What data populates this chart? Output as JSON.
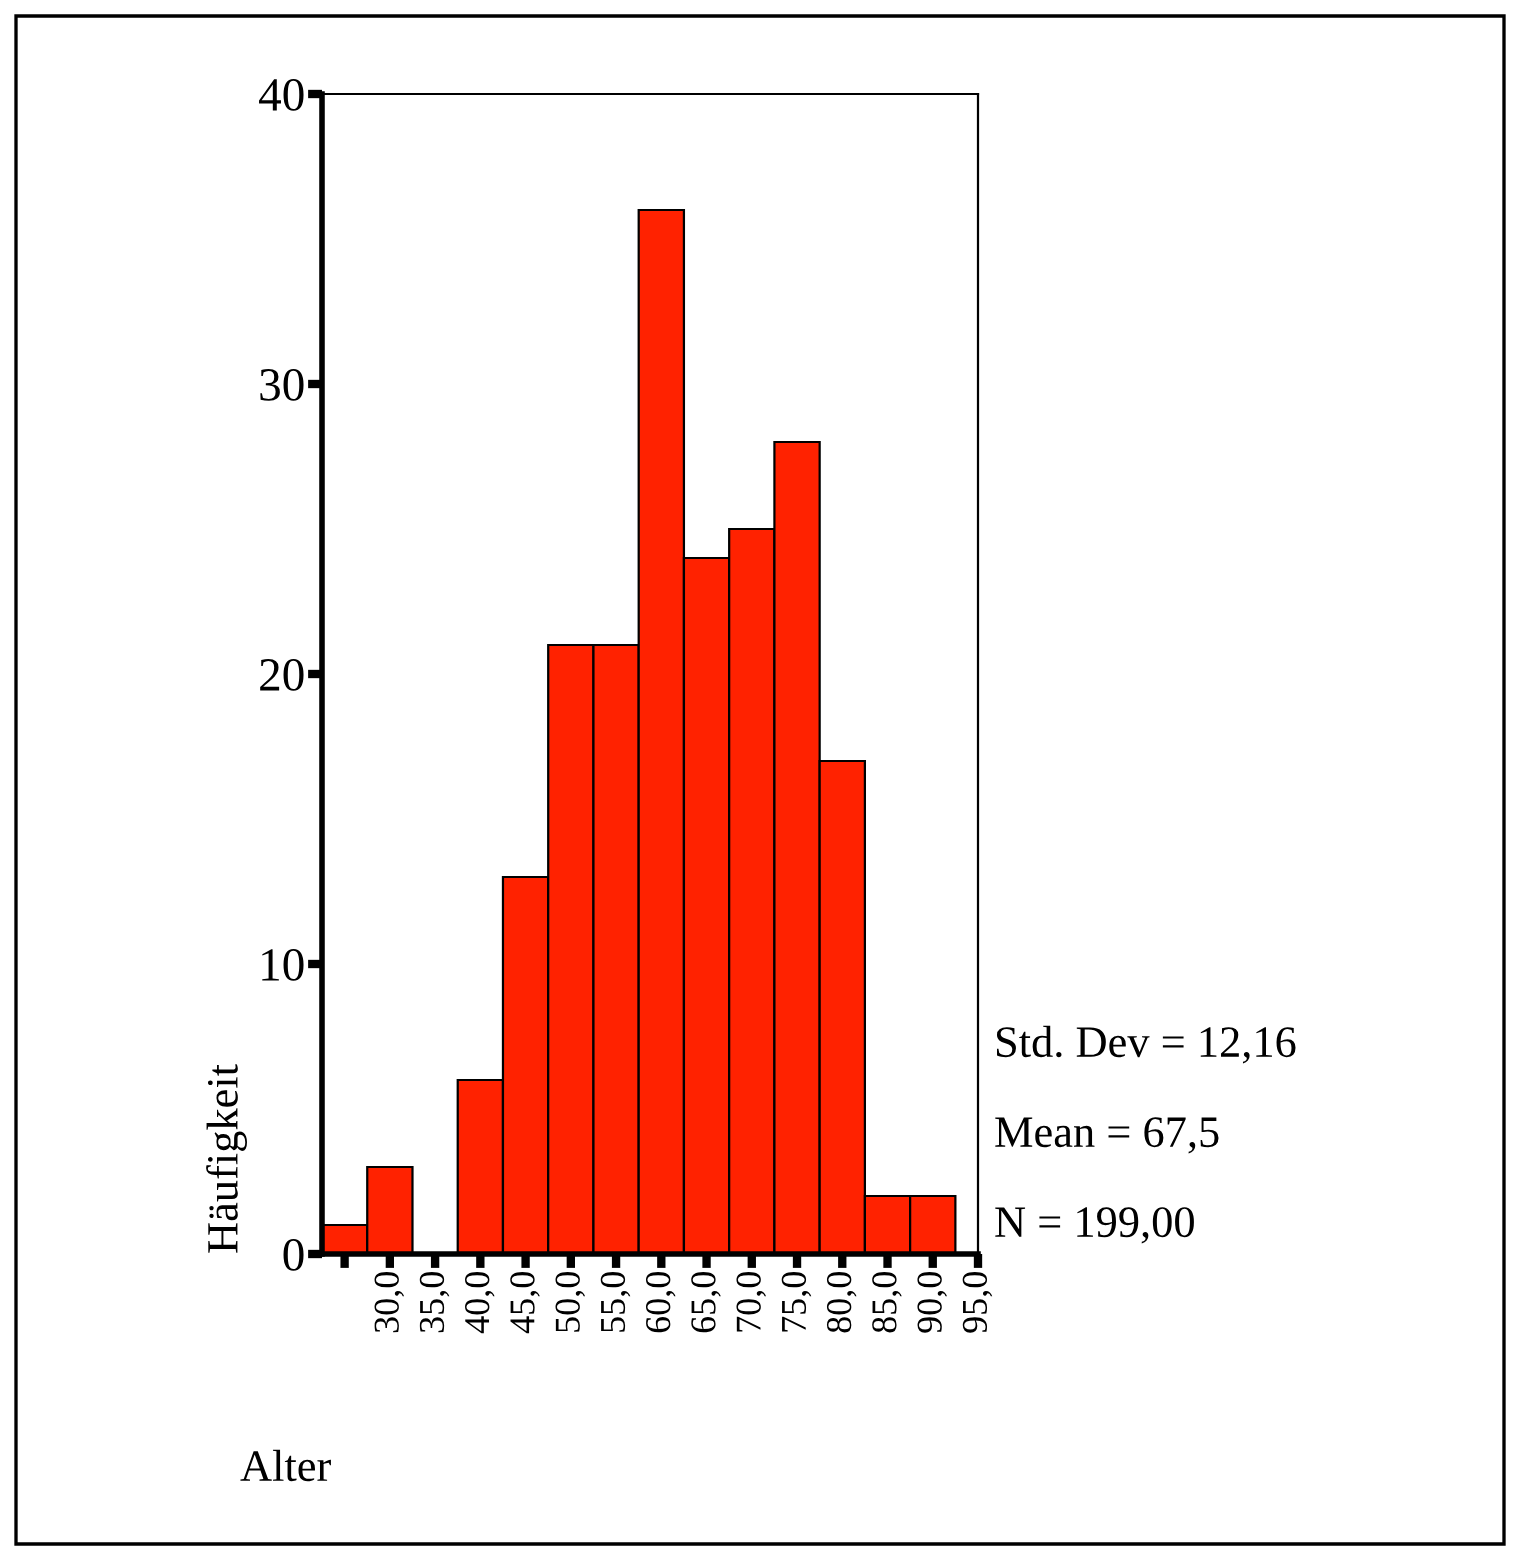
{
  "chart_data": {
    "type": "histogram",
    "xlabel": "Alter",
    "ylabel": "Häufigkeit",
    "bins": [
      22.5,
      27.5,
      32.5,
      37.5,
      42.5,
      47.5,
      52.5,
      57.5,
      62.5,
      67.5,
      72.5,
      77.5,
      82.5,
      87.5,
      92.5
    ],
    "values": [
      1,
      3,
      0,
      6,
      13,
      21,
      21,
      36,
      24,
      25,
      28,
      17,
      2,
      2
    ],
    "color": "#ff2200",
    "xlim": [
      22.5,
      95
    ],
    "xticks": [
      {
        "value": 25,
        "label": null
      },
      {
        "value": 30,
        "label": "30,0"
      },
      {
        "value": 35,
        "label": "35,0"
      },
      {
        "value": 40,
        "label": "40,0"
      },
      {
        "value": 45,
        "label": "45,0"
      },
      {
        "value": 50,
        "label": "50,0"
      },
      {
        "value": 55,
        "label": "55,0"
      },
      {
        "value": 60,
        "label": "60,0"
      },
      {
        "value": 65,
        "label": "65,0"
      },
      {
        "value": 70,
        "label": "70,0"
      },
      {
        "value": 75,
        "label": "75,0"
      },
      {
        "value": 80,
        "label": "80,0"
      },
      {
        "value": 85,
        "label": "85,0"
      },
      {
        "value": 90,
        "label": "90,0"
      },
      {
        "value": 95,
        "label": "95,0"
      }
    ],
    "ylim": [
      0,
      40
    ],
    "yticks": [
      0,
      10,
      20,
      30,
      40
    ],
    "annotations": [
      "Std. Dev = 12,16",
      "Mean = 67,5",
      "N = 199,00"
    ]
  }
}
